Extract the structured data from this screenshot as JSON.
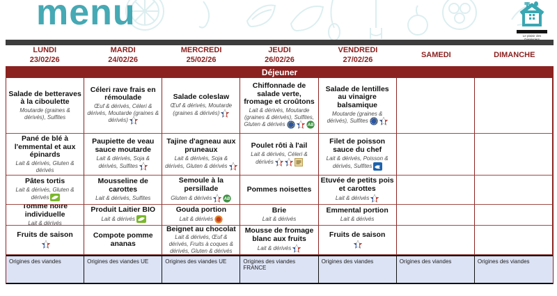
{
  "page": {
    "title": "menu"
  },
  "logo": {
    "icon": "house-fork-spoon-icon",
    "caption_line1": "Le plaisir des",
    "caption_line2": "Genévriers"
  },
  "meal_banner": "Déjeuner",
  "days": [
    {
      "label": "LUNDI",
      "date": "23/02/26"
    },
    {
      "label": "MARDI",
      "date": "24/02/26"
    },
    {
      "label": "MERCREDI",
      "date": "25/02/26"
    },
    {
      "label": "JEUDI",
      "date": "26/02/26"
    },
    {
      "label": "VENDREDI",
      "date": "27/02/26"
    },
    {
      "label": "SAMEDI",
      "date": ""
    },
    {
      "label": "DIMANCHE",
      "date": ""
    }
  ],
  "icon_names": {
    "france": "france-origin-icon",
    "ab": "ab-bio-icon",
    "eu_bio": "eu-organic-leaf-icon",
    "blue_label": "blue-quality-label-icon",
    "msc": "sustainable-fishing-icon",
    "yellow_label": "yellow-quality-label-icon",
    "orange_label": "orange-cheese-label-icon"
  },
  "rows": [
    {
      "course": "entree",
      "cells": [
        {
          "title": "Salade de betteraves à la ciboulette",
          "allergens": "Moutarde (graines & dérivés), Sulfites",
          "icons": []
        },
        {
          "title": "Céleri rave frais en rémoulade",
          "allergens": "Œuf & dérivés, Céleri & dérivés, Moutarde (graines & dérivés)",
          "icons": [
            "france"
          ]
        },
        {
          "title": "Salade coleslaw",
          "allergens": "Œuf & dérivés, Moutarde (graines & dérivés)",
          "icons": [
            "france"
          ]
        },
        {
          "title": "Chiffonnade de salade verte, fromage et croûtons",
          "allergens": "Lait & dérivés, Moutarde (graines & dérivés), Sulfites, Gluten & dérivés",
          "icons": [
            "blue_label",
            "france",
            "ab"
          ]
        },
        {
          "title": "Salade de lentilles au vinaigre balsamique",
          "allergens": "Moutarde (graines & dérivés), Sulfites",
          "icons": [
            "blue_label",
            "france"
          ]
        },
        {
          "title": "",
          "allergens": "",
          "icons": []
        },
        {
          "title": "",
          "allergens": "",
          "icons": []
        }
      ]
    },
    {
      "course": "plat",
      "cells": [
        {
          "title": "Pané de blé à l'emmental et aux épinards",
          "allergens": "Lait & dérivés, Gluten & dérivés",
          "icons": []
        },
        {
          "title": "Paupiette de veau sauce moutarde",
          "allergens": "Lait & dérivés, Soja & dérivés, Sulfites",
          "icons": [
            "france"
          ]
        },
        {
          "title": "Tajine d'agneau aux pruneaux",
          "allergens": "Lait & dérivés, Soja & dérivés, Gluten & dérivés",
          "icons": [
            "france"
          ]
        },
        {
          "title": "Poulet rôti à l'ail",
          "allergens": "Lait & dérivés, Céleri & dérivés",
          "icons": [
            "france",
            "france",
            "yellow_label"
          ]
        },
        {
          "title": "Filet de poisson sauce du chef",
          "allergens": "Lait & dérivés, Poisson & dérivés, Sulfites",
          "icons": [
            "msc"
          ]
        },
        {
          "title": "",
          "allergens": "",
          "icons": []
        },
        {
          "title": "",
          "allergens": "",
          "icons": []
        }
      ]
    },
    {
      "course": "accompagnement",
      "cells": [
        {
          "title": "Pâtes tortis",
          "allergens": "Lait & dérivés, Gluten & dérivés",
          "icons": [
            "eu_bio"
          ]
        },
        {
          "title": "Mousseline de carottes",
          "allergens": "Lait & dérivés, Sulfites",
          "icons": []
        },
        {
          "title": "Semoule à la persillade",
          "allergens": "Gluten & dérivés",
          "icons": [
            "france",
            "ab"
          ]
        },
        {
          "title": "Pommes noisettes",
          "allergens": "",
          "icons": []
        },
        {
          "title": "Etuvée de petits pois et carottes",
          "allergens": "Lait & dérivés",
          "icons": [
            "france"
          ]
        },
        {
          "title": "",
          "allergens": "",
          "icons": []
        },
        {
          "title": "",
          "allergens": "",
          "icons": []
        }
      ]
    },
    {
      "course": "fromage",
      "cells": [
        {
          "title": "Tomme noire individuelle",
          "allergens": "Lait & dérivés",
          "icons": []
        },
        {
          "title": "Produit Laitier BIO",
          "allergens": "Lait & dérivés",
          "icons": [
            "eu_bio"
          ]
        },
        {
          "title": "Gouda portion",
          "allergens": "Lait & dérivés",
          "icons": [
            "orange_label"
          ]
        },
        {
          "title": "Brie",
          "allergens": "Lait & dérivés",
          "icons": []
        },
        {
          "title": "Emmental portion",
          "allergens": "Lait & dérivés",
          "icons": []
        },
        {
          "title": "",
          "allergens": "",
          "icons": []
        },
        {
          "title": "",
          "allergens": "",
          "icons": []
        }
      ]
    },
    {
      "course": "dessert",
      "cells": [
        {
          "title": "Fruits de saison",
          "allergens": "",
          "icons": [
            "france"
          ]
        },
        {
          "title": "Compote pomme ananas",
          "allergens": "",
          "icons": []
        },
        {
          "title": "Beignet au chocolat",
          "allergens": "Lait & dérivés, Œuf & dérivés, Fruits à coques & dérivés, Gluten & dérivés",
          "icons": []
        },
        {
          "title": "Mousse de fromage blanc aux fruits",
          "allergens": "Lait & dérivés",
          "icons": [
            "france"
          ]
        },
        {
          "title": "Fruits de saison",
          "allergens": "",
          "icons": [
            "france"
          ]
        },
        {
          "title": "",
          "allergens": "",
          "icons": []
        },
        {
          "title": "",
          "allergens": "",
          "icons": []
        }
      ]
    }
  ],
  "origins_row": [
    "Origines des viandes",
    "Origines des viandes  UE",
    "Origines des viandes UE",
    "Origines des viandes FRANCE",
    "Origines des viandes",
    "Origines des viandes",
    "Origines des viandes"
  ]
}
